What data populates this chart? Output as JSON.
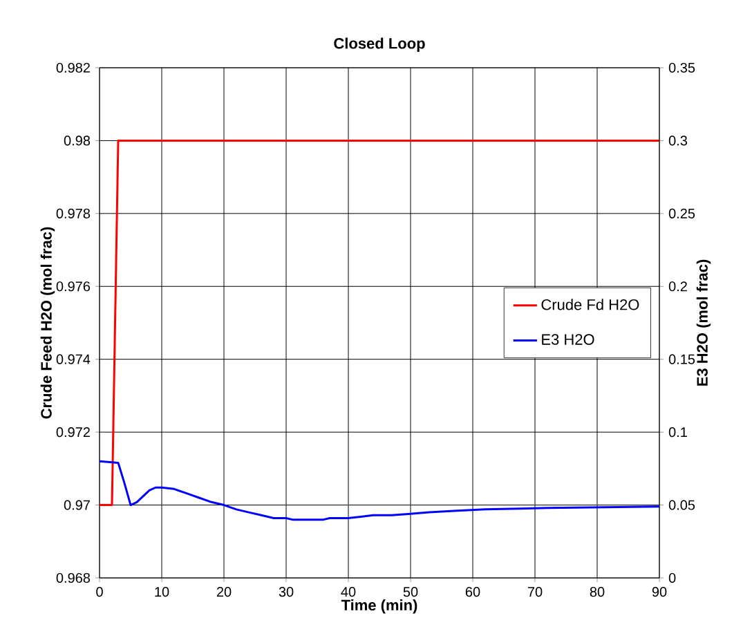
{
  "chart_data": {
    "type": "line",
    "title": "Closed Loop",
    "xlabel": "Time (min)",
    "ylabel": "Crude Feed H2O (mol frac)",
    "y2label": "E3 H2O (mol frac)",
    "xlim": [
      0,
      90
    ],
    "xticks": [
      0,
      10,
      20,
      30,
      40,
      50,
      60,
      70,
      80,
      90
    ],
    "ylim": [
      0.968,
      0.982
    ],
    "yticks": [
      0.968,
      0.97,
      0.972,
      0.974,
      0.976,
      0.978,
      0.98,
      0.982
    ],
    "y2lim": [
      0,
      0.35
    ],
    "y2ticks": [
      0,
      0.05,
      0.1,
      0.15,
      0.2,
      0.25,
      0.3,
      0.35
    ],
    "grid": true,
    "legend": "right",
    "series": [
      {
        "name": "Crude Fd H2O",
        "color": "#ff0000",
        "x": [
          0,
          2,
          3,
          90
        ],
        "values": [
          0.97,
          0.97,
          0.98,
          0.98
        ]
      },
      {
        "name": "E3 H2O",
        "color": "#0000ff",
        "axis": "y2",
        "x": [
          0,
          3,
          4,
          5,
          6,
          8,
          9,
          10,
          12,
          14,
          16,
          18,
          20,
          22,
          24,
          26,
          28,
          30,
          31,
          36,
          37,
          40,
          42,
          44,
          47,
          50,
          53,
          57,
          62,
          72,
          90
        ],
        "values": [
          0.08,
          0.079,
          0.065,
          0.05,
          0.052,
          0.06,
          0.062,
          0.062,
          0.061,
          0.058,
          0.055,
          0.052,
          0.05,
          0.047,
          0.045,
          0.043,
          0.041,
          0.041,
          0.04,
          0.04,
          0.041,
          0.041,
          0.042,
          0.043,
          0.043,
          0.044,
          0.045,
          0.046,
          0.047,
          0.048,
          0.049
        ]
      }
    ]
  }
}
